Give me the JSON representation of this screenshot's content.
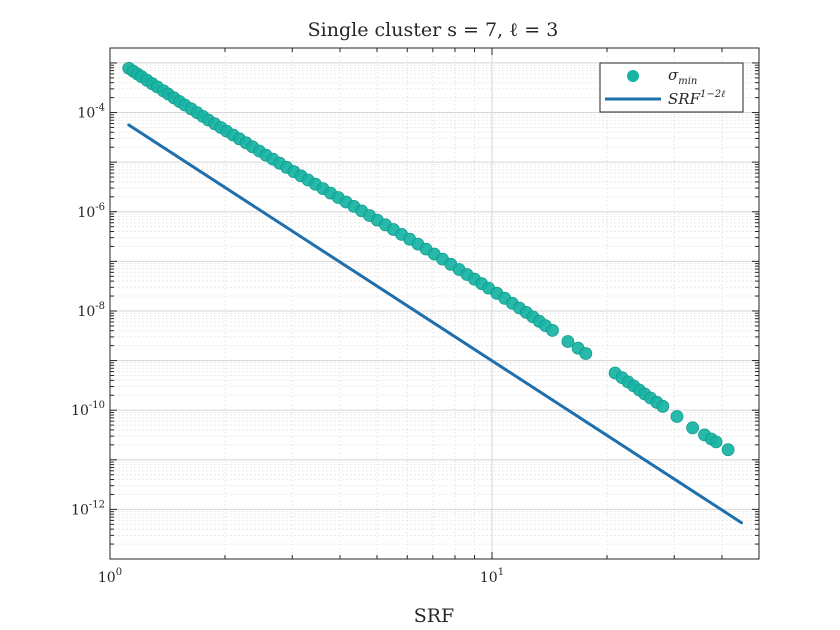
{
  "chart_data": {
    "type": "scatter",
    "title": "Single cluster s = 7, ℓ = 3",
    "xlabel": "SRF",
    "ylabel": "",
    "xscale": "log",
    "yscale": "log",
    "xlim": [
      1,
      50
    ],
    "ylim": [
      1e-13,
      0.002
    ],
    "grid": true,
    "legend_position": "top-right",
    "x_ticks": [
      {
        "base": "10",
        "exp": "0",
        "value": 1
      },
      {
        "base": "10",
        "exp": "1",
        "value": 10
      }
    ],
    "y_ticks": [
      {
        "base": "10",
        "exp": "-4",
        "value": 0.0001
      },
      {
        "base": "10",
        "exp": "-6",
        "value": 1e-06
      },
      {
        "base": "10",
        "exp": "-8",
        "value": 1e-08
      },
      {
        "base": "10",
        "exp": "-10",
        "value": 1e-10
      },
      {
        "base": "10",
        "exp": "-12",
        "value": 1e-12
      }
    ],
    "series": [
      {
        "name_main": "σ",
        "name_sub": "min",
        "kind": "scatter",
        "color": "#17b3a3",
        "x": [
          1.12,
          1.15,
          1.18,
          1.21,
          1.25,
          1.29,
          1.33,
          1.38,
          1.42,
          1.47,
          1.52,
          1.57,
          1.63,
          1.69,
          1.75,
          1.81,
          1.88,
          1.95,
          2.02,
          2.1,
          2.18,
          2.27,
          2.36,
          2.46,
          2.56,
          2.67,
          2.78,
          2.9,
          3.03,
          3.16,
          3.3,
          3.45,
          3.61,
          3.78,
          3.96,
          4.15,
          4.35,
          4.56,
          4.78,
          5.01,
          5.26,
          5.52,
          5.8,
          6.09,
          6.4,
          6.72,
          7.06,
          7.42,
          7.8,
          8.2,
          8.6,
          9.0,
          9.4,
          9.8,
          10.3,
          10.8,
          11.3,
          11.8,
          12.3,
          12.8,
          13.3,
          13.8,
          14.4,
          15.8,
          16.8,
          17.6,
          21.0,
          21.9,
          22.7,
          23.5,
          24.3,
          25.1,
          26.0,
          27.0,
          28.0,
          30.5,
          33.5,
          36.0,
          37.5,
          38.6,
          41.5
        ],
        "y": [
          0.00078,
          0.000683,
          0.000599,
          0.000527,
          0.000447,
          0.000382,
          0.000328,
          0.000274,
          0.000236,
          0.000198,
          0.000167,
          0.000142,
          0.000119,
          9.95e-05,
          8.36e-05,
          7.07e-05,
          5.93e-05,
          5e-05,
          4.23e-05,
          3.53e-05,
          2.96e-05,
          2.45e-05,
          2.04e-05,
          1.68e-05,
          1.39e-05,
          1.15e-05,
          9.53e-06,
          7.86e-06,
          6.43e-06,
          5.31e-06,
          4.36e-06,
          3.59e-06,
          2.93e-06,
          2.38e-06,
          1.94e-06,
          1.57e-06,
          1.28e-06,
          1.04e-06,
          8.41e-07,
          6.8e-07,
          5.45e-07,
          4.38e-07,
          3.5e-07,
          2.8e-07,
          2.23e-07,
          1.77e-07,
          1.41e-07,
          1.11e-07,
          8.73e-08,
          6.86e-08,
          5.44e-08,
          4.36e-08,
          3.55e-08,
          2.89e-08,
          2.27e-08,
          1.8e-08,
          1.43e-08,
          1.15e-08,
          9.34e-09,
          7.58e-09,
          6.2e-09,
          5.08e-09,
          4.06e-09,
          2.42e-09,
          1.78e-09,
          1.39e-09,
          5.61e-10,
          4.54e-10,
          3.72e-10,
          3.08e-10,
          2.55e-10,
          2.12e-10,
          1.76e-10,
          1.44e-10,
          1.2e-10,
          7.45e-11,
          4.42e-11,
          3.17e-11,
          2.62e-11,
          2.29e-11,
          1.6e-11
        ]
      },
      {
        "name_main": "SRF",
        "name_sup": "1−2ℓ",
        "kind": "line",
        "color": "#1f6fad",
        "x": [
          1.12,
          45.0
        ],
        "y": [
          5.6e-05,
          5.4e-13
        ]
      }
    ]
  }
}
